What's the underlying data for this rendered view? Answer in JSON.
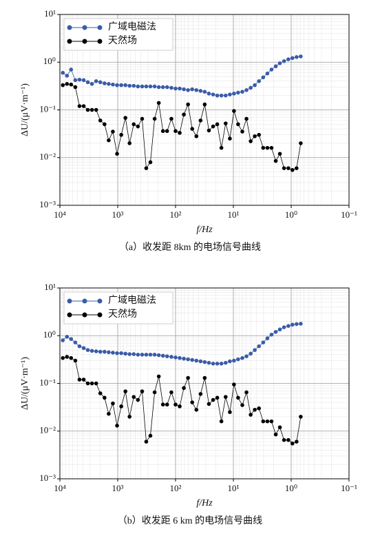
{
  "chart_data": [
    {
      "type": "line",
      "xlabel": "f/Hz",
      "ylabel": "ΔU/(μV·m⁻¹)",
      "caption": "（a）收发距 8km 的电场信号曲线",
      "xscale": "log",
      "yscale": "log",
      "grid": true,
      "legend": "upper left",
      "xlim": [
        10000,
        0.1
      ],
      "ylim": [
        0.001,
        10
      ],
      "xticks": [
        {
          "value": 10000,
          "label": "10⁴"
        },
        {
          "value": 1000,
          "label": "10³"
        },
        {
          "value": 100,
          "label": "10²"
        },
        {
          "value": 10,
          "label": "10¹"
        },
        {
          "value": 1,
          "label": "10⁰"
        },
        {
          "value": 0.1,
          "label": "10⁻¹"
        }
      ],
      "yticks": [
        {
          "value": 0.001,
          "label": "10⁻³"
        },
        {
          "value": 0.01,
          "label": "10⁻²"
        },
        {
          "value": 0.1,
          "label": "10⁻¹"
        },
        {
          "value": 1,
          "label": "10⁰"
        },
        {
          "value": 10,
          "label": "10¹"
        }
      ],
      "x": [
        8900,
        7550,
        6400,
        5410,
        4580,
        3880,
        3290,
        2790,
        2360,
        2000,
        1690,
        1432,
        1213,
        1026,
        869,
        736,
        624,
        528,
        447,
        378,
        321,
        272,
        230,
        195,
        165,
        140,
        118,
        100,
        84.7,
        71.8,
        60.8,
        51.5,
        43.6,
        36.9,
        31.3,
        26.5,
        22.4,
        19.0,
        16.1,
        13.6,
        11.5,
        9.77,
        8.28,
        7.0,
        5.93,
        5.02,
        4.26,
        3.61,
        3.05,
        2.58,
        2.19,
        1.85,
        1.57,
        1.33,
        1.12,
        0.953,
        0.807,
        0.684
      ],
      "series": [
        {
          "name": "广域电磁法",
          "color": "#3a5ba8",
          "values": [
            0.6,
            0.52,
            0.7,
            0.42,
            0.43,
            0.42,
            0.38,
            0.35,
            0.4,
            0.38,
            0.36,
            0.35,
            0.34,
            0.33,
            0.33,
            0.33,
            0.32,
            0.32,
            0.31,
            0.31,
            0.31,
            0.31,
            0.31,
            0.3,
            0.3,
            0.3,
            0.29,
            0.28,
            0.28,
            0.27,
            0.26,
            0.27,
            0.26,
            0.25,
            0.24,
            0.22,
            0.21,
            0.2,
            0.2,
            0.2,
            0.21,
            0.22,
            0.23,
            0.24,
            0.26,
            0.29,
            0.33,
            0.4,
            0.48,
            0.58,
            0.7,
            0.82,
            0.95,
            1.05,
            1.15,
            1.22,
            1.28,
            1.32
          ]
        },
        {
          "name": "天然场",
          "color": "#000000",
          "values": [
            0.33,
            0.35,
            0.34,
            0.3,
            0.12,
            0.12,
            0.1,
            0.1,
            0.1,
            0.06,
            0.05,
            0.023,
            0.035,
            0.012,
            0.03,
            0.068,
            0.02,
            0.05,
            0.045,
            0.065,
            0.006,
            0.008,
            0.065,
            0.14,
            0.036,
            0.036,
            0.065,
            0.036,
            0.033,
            0.08,
            0.13,
            0.04,
            0.028,
            0.06,
            0.13,
            0.037,
            0.045,
            0.05,
            0.016,
            0.052,
            0.025,
            0.095,
            0.05,
            0.035,
            0.065,
            0.022,
            0.028,
            0.03,
            0.016,
            0.016,
            0.016,
            0.0085,
            0.012,
            0.006,
            0.006,
            0.0055,
            0.006,
            0.02
          ]
        }
      ]
    },
    {
      "type": "line",
      "xlabel": "f/Hz",
      "ylabel": "ΔU/(μV·m⁻¹)",
      "caption": "（b）收发距 6 km 的电场信号曲线",
      "xscale": "log",
      "yscale": "log",
      "grid": true,
      "legend": "upper left",
      "xlim": [
        10000,
        0.1
      ],
      "ylim": [
        0.001,
        10
      ],
      "xticks": [
        {
          "value": 10000,
          "label": "10⁴"
        },
        {
          "value": 1000,
          "label": "10³"
        },
        {
          "value": 100,
          "label": "10²"
        },
        {
          "value": 10,
          "label": "10¹"
        },
        {
          "value": 1,
          "label": "10⁰"
        },
        {
          "value": 0.1,
          "label": "10⁻¹"
        }
      ],
      "yticks": [
        {
          "value": 0.001,
          "label": "10⁻³"
        },
        {
          "value": 0.01,
          "label": "10⁻²"
        },
        {
          "value": 0.1,
          "label": "10⁻¹"
        },
        {
          "value": 1,
          "label": "10⁰"
        },
        {
          "value": 10,
          "label": "10¹"
        }
      ],
      "x": [
        8900,
        7550,
        6400,
        5410,
        4580,
        3880,
        3290,
        2790,
        2360,
        2000,
        1690,
        1432,
        1213,
        1026,
        869,
        736,
        624,
        528,
        447,
        378,
        321,
        272,
        230,
        195,
        165,
        140,
        118,
        100,
        84.7,
        71.8,
        60.8,
        51.5,
        43.6,
        36.9,
        31.3,
        26.5,
        22.4,
        19.0,
        16.1,
        13.6,
        11.5,
        9.77,
        8.28,
        7.0,
        5.93,
        5.02,
        4.26,
        3.61,
        3.05,
        2.58,
        2.19,
        1.85,
        1.57,
        1.33,
        1.12,
        0.953,
        0.807,
        0.684
      ],
      "series": [
        {
          "name": "广域电磁法",
          "color": "#3a5ba8",
          "values": [
            0.8,
            0.95,
            0.85,
            0.72,
            0.6,
            0.55,
            0.5,
            0.48,
            0.47,
            0.46,
            0.46,
            0.45,
            0.44,
            0.43,
            0.43,
            0.42,
            0.41,
            0.41,
            0.4,
            0.4,
            0.4,
            0.4,
            0.4,
            0.39,
            0.38,
            0.37,
            0.36,
            0.35,
            0.34,
            0.33,
            0.32,
            0.31,
            0.3,
            0.29,
            0.28,
            0.27,
            0.26,
            0.26,
            0.26,
            0.27,
            0.29,
            0.3,
            0.32,
            0.34,
            0.37,
            0.42,
            0.5,
            0.6,
            0.72,
            0.88,
            1.05,
            1.2,
            1.35,
            1.5,
            1.6,
            1.7,
            1.75,
            1.78
          ]
        },
        {
          "name": "天然场",
          "color": "#000000",
          "values": [
            0.34,
            0.36,
            0.34,
            0.3,
            0.12,
            0.12,
            0.1,
            0.1,
            0.1,
            0.062,
            0.05,
            0.023,
            0.038,
            0.013,
            0.033,
            0.068,
            0.02,
            0.052,
            0.045,
            0.068,
            0.006,
            0.008,
            0.065,
            0.14,
            0.036,
            0.036,
            0.065,
            0.036,
            0.033,
            0.08,
            0.13,
            0.04,
            0.028,
            0.06,
            0.13,
            0.037,
            0.045,
            0.05,
            0.016,
            0.052,
            0.025,
            0.095,
            0.05,
            0.035,
            0.065,
            0.022,
            0.028,
            0.03,
            0.016,
            0.016,
            0.016,
            0.0085,
            0.012,
            0.0065,
            0.0065,
            0.0055,
            0.006,
            0.02
          ]
        }
      ]
    }
  ]
}
